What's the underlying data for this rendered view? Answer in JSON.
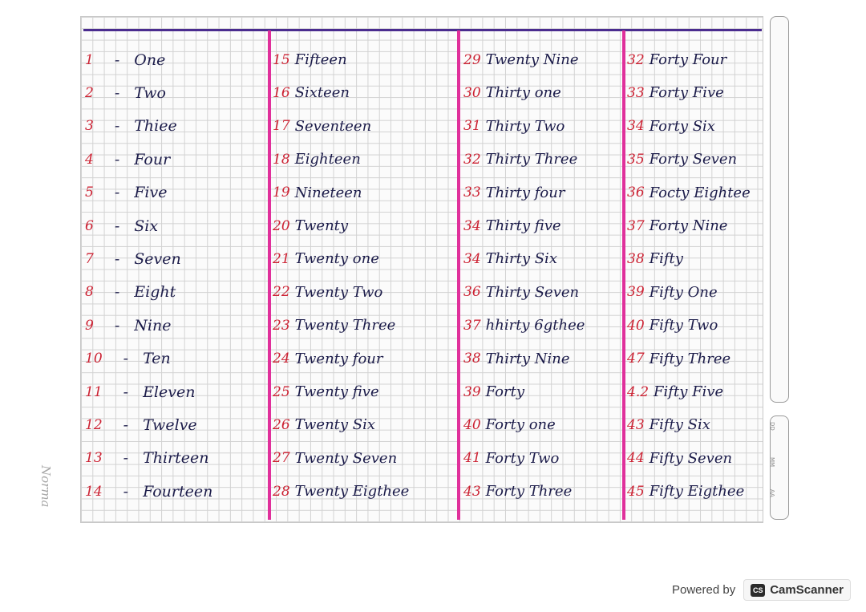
{
  "columns": [
    [
      {
        "num": "1",
        "word": "One"
      },
      {
        "num": "2",
        "word": "Two"
      },
      {
        "num": "3",
        "word": "Thiee"
      },
      {
        "num": "4",
        "word": "Four"
      },
      {
        "num": "5",
        "word": "Five"
      },
      {
        "num": "6",
        "word": "Six"
      },
      {
        "num": "7",
        "word": "Seven"
      },
      {
        "num": "8",
        "word": "Eight"
      },
      {
        "num": "9",
        "word": "Nine"
      },
      {
        "num": "10",
        "word": "Ten"
      },
      {
        "num": "11",
        "word": "Eleven"
      },
      {
        "num": "12",
        "word": "Twelve"
      },
      {
        "num": "13",
        "word": "Thirteen"
      },
      {
        "num": "14",
        "word": "Fourteen"
      }
    ],
    [
      {
        "num": "15",
        "word": "Fifteen"
      },
      {
        "num": "16",
        "word": "Sixteen"
      },
      {
        "num": "17",
        "word": "Seventeen"
      },
      {
        "num": "18",
        "word": "Eighteen"
      },
      {
        "num": "19",
        "word": "Nineteen"
      },
      {
        "num": "20",
        "word": "Twenty"
      },
      {
        "num": "21",
        "word": "Twenty one"
      },
      {
        "num": "22",
        "word": "Twenty Two"
      },
      {
        "num": "23",
        "word": "Twenty Three"
      },
      {
        "num": "24",
        "word": "Twenty four"
      },
      {
        "num": "25",
        "word": "Twenty five"
      },
      {
        "num": "26",
        "word": "Twenty Six"
      },
      {
        "num": "27",
        "word": "Twenty Seven"
      },
      {
        "num": "28",
        "word": "Twenty Eigthee"
      }
    ],
    [
      {
        "num": "29",
        "word": "Twenty Nine"
      },
      {
        "num": "30",
        "word": "Thirty one"
      },
      {
        "num": "31",
        "word": "Thirty Two"
      },
      {
        "num": "32",
        "word": "Thirty Three"
      },
      {
        "num": "33",
        "word": "Thirty four"
      },
      {
        "num": "34",
        "word": "Thirty five"
      },
      {
        "num": "34",
        "word": "Thirty Six"
      },
      {
        "num": "36",
        "word": "Thirty Seven"
      },
      {
        "num": "37",
        "word": "hhirty 6gthee"
      },
      {
        "num": "38",
        "word": "Thirty Nine"
      },
      {
        "num": "39",
        "word": "Forty"
      },
      {
        "num": "40",
        "word": "Forty one"
      },
      {
        "num": "41",
        "word": "Forty Two"
      },
      {
        "num": "43",
        "word": "Forty Three"
      }
    ],
    [
      {
        "num": "32",
        "word": "Forty Four"
      },
      {
        "num": "33",
        "word": "Forty Five"
      },
      {
        "num": "34",
        "word": "Forty Six"
      },
      {
        "num": "35",
        "word": "Forty Seven"
      },
      {
        "num": "36",
        "word": "Focty Eightee"
      },
      {
        "num": "37",
        "word": "Forty Nine"
      },
      {
        "num": "38",
        "word": "Fifty"
      },
      {
        "num": "39",
        "word": "Fifty One"
      },
      {
        "num": "40",
        "word": "Fifty Two"
      },
      {
        "num": "47",
        "word": "Fifty Three"
      },
      {
        "num": "4.2",
        "word": "Fifty Five"
      },
      {
        "num": "43",
        "word": "Fifty Six"
      },
      {
        "num": "44",
        "word": "Fifty Seven"
      },
      {
        "num": "45",
        "word": "Fifty Eigthee"
      }
    ]
  ],
  "notebook_brand": "Norma",
  "side_tab": {
    "labels": [
      "DD",
      "MM",
      "AA"
    ]
  },
  "footer": {
    "powered_by": "Powered by",
    "app_logo": "CS",
    "app_name": "CamScanner"
  },
  "colors": {
    "grid": "#d2d2d2",
    "margin_lines": "#e0309b",
    "top_rule": "#4a2c8f",
    "numbers": "#cc2233",
    "ink": "#1c1c4a"
  }
}
